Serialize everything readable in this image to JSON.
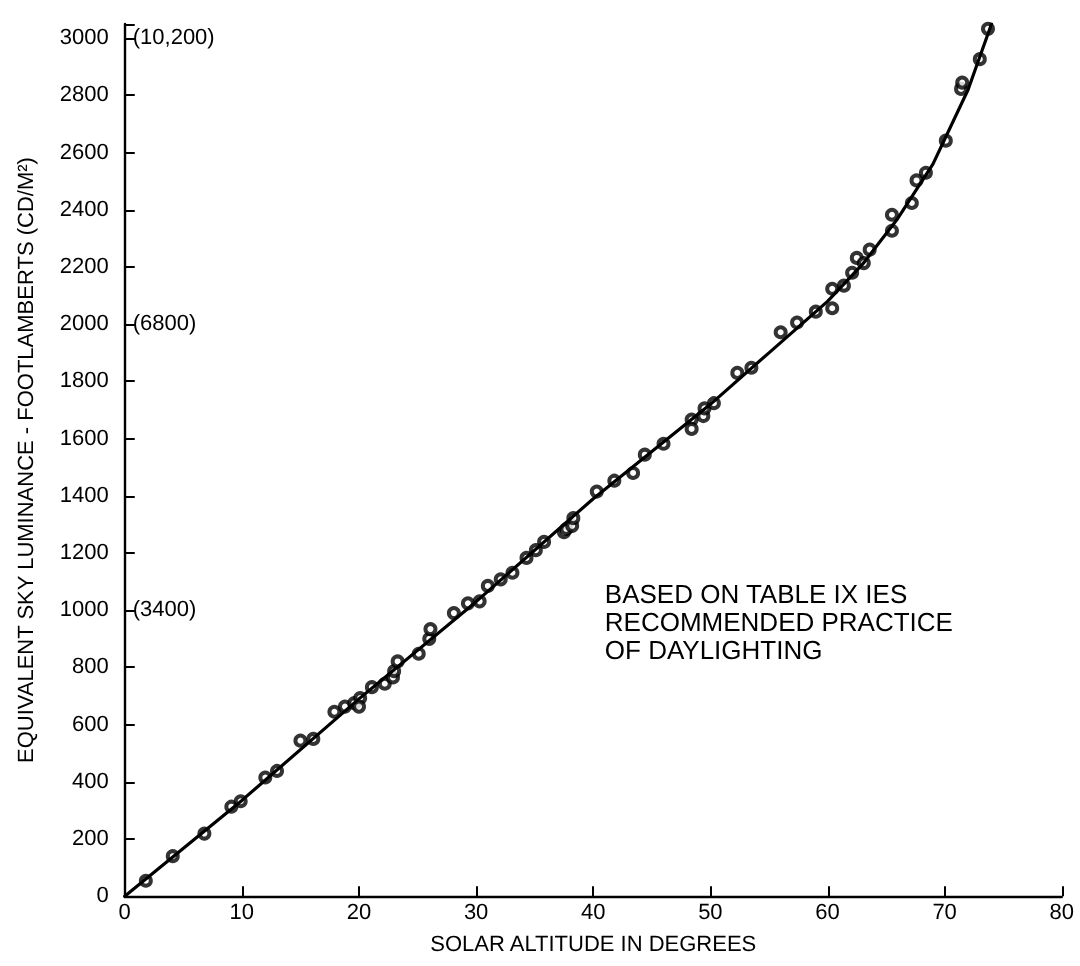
{
  "chart_data": {
    "type": "scatter",
    "xlabel": "SOLAR ALTITUDE IN DEGREES",
    "ylabel": "EQUIVALENT SKY LUMINANCE - FOOTLAMBERTS (CD/M²)",
    "annotations": [
      "BASED ON TABLE IX IES\nRECOMMENDED PRACTICE\nOF DAYLIGHTING"
    ],
    "xlim": [
      0,
      80
    ],
    "xticks": [
      0,
      10,
      20,
      30,
      40,
      50,
      60,
      70,
      80
    ],
    "ylim": [
      0,
      3050
    ],
    "yticks": [
      0,
      200,
      400,
      600,
      800,
      1000,
      1200,
      1400,
      1600,
      1800,
      2000,
      2200,
      2400,
      2600,
      2800,
      3000
    ],
    "y2lim": [
      0,
      10370
    ],
    "y2ticks": [
      {
        "value": 3400,
        "label": "(3400)"
      },
      {
        "value": 6800,
        "label": "(6800)"
      },
      {
        "value": 10200,
        "label": "(10,200)"
      }
    ],
    "grid": false,
    "marker": "circle",
    "series": [
      {
        "color": "#000000",
        "x": [
          1.8,
          4.1,
          6.8,
          9.1,
          9.9,
          12.0,
          13.0,
          15.0,
          16.1,
          17.9,
          18.8,
          19.6,
          20.1,
          21.1,
          20.0,
          22.2,
          22.9,
          23.0,
          23.3,
          25.1,
          26.0,
          26.1,
          28.1,
          29.3,
          30.3,
          31.0,
          32.1,
          33.1,
          34.3,
          35.1,
          35.8,
          37.5,
          37.7,
          38.2,
          38.3,
          40.3,
          41.8,
          43.4,
          44.4,
          46.0,
          48.4,
          48.4,
          49.4,
          49.5,
          50.3,
          52.3,
          53.5,
          56.0,
          57.4,
          59.0,
          60.4,
          60.4,
          61.4,
          62.1,
          62.5,
          63.1,
          63.6,
          65.5,
          65.5,
          67.2,
          67.6,
          68.4,
          70.1,
          71.4,
          71.5,
          73.0,
          73.7
        ],
        "values": [
          54,
          140,
          219,
          313,
          332,
          415,
          438,
          544,
          550,
          645,
          663,
          675,
          693,
          731,
          663,
          743,
          765,
          787,
          821,
          848,
          900,
          934,
          990,
          1024,
          1031,
          1085,
          1108,
          1131,
          1183,
          1210,
          1239,
          1273,
          1284,
          1295,
          1322,
          1415,
          1453,
          1480,
          1544,
          1582,
          1667,
          1634,
          1679,
          1706,
          1724,
          1830,
          1848,
          1972,
          2006,
          2044,
          2056,
          2124,
          2135,
          2180,
          2232,
          2214,
          2261,
          2327,
          2383,
          2424,
          2503,
          2530,
          2642,
          2823,
          2845,
          2927,
          3033
        ]
      },
      {
        "type": "line",
        "color": "#000000",
        "marker": "none",
        "line_style": "solid",
        "x": [
          0,
          10,
          20,
          30,
          40,
          50,
          55,
          60,
          63,
          66,
          69,
          72,
          74
        ],
        "values": [
          0,
          335,
          690,
          1030,
          1390,
          1720,
          1900,
          2080,
          2210,
          2370,
          2560,
          2820,
          3050
        ]
      }
    ]
  }
}
